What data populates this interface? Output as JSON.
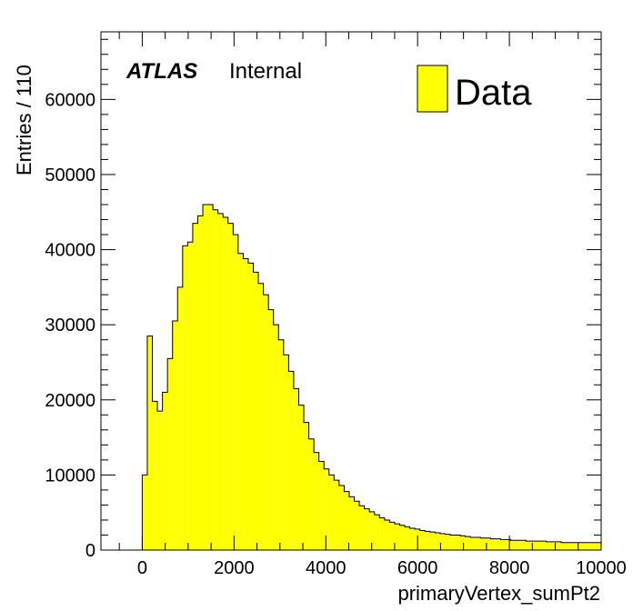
{
  "chart_data": {
    "type": "bar",
    "histogram": true,
    "xlabel": "primaryVertex_sumPt2",
    "ylabel": "Entries / 110",
    "xlim": [
      -900,
      10000
    ],
    "ylim": [
      0,
      69000
    ],
    "bin_width": 110,
    "first_bin_low_edge": 0,
    "xticks": [
      0,
      2000,
      4000,
      6000,
      8000,
      10000
    ],
    "yticks": [
      0,
      10000,
      20000,
      30000,
      40000,
      50000,
      60000
    ],
    "xtick_labels": [
      "0",
      "2000",
      "4000",
      "6000",
      "8000",
      "10000"
    ],
    "ytick_labels": [
      "0",
      "10000",
      "20000",
      "30000",
      "40000",
      "50000",
      "60000"
    ],
    "values": [
      10000,
      28500,
      19800,
      18500,
      21000,
      25500,
      30500,
      35000,
      40500,
      41000,
      43500,
      44500,
      46000,
      46000,
      45300,
      44800,
      44300,
      43500,
      42000,
      39500,
      38800,
      38200,
      37000,
      35500,
      34000,
      32000,
      30000,
      28000,
      26000,
      23800,
      21500,
      19300,
      17000,
      14800,
      13000,
      11800,
      10800,
      10000,
      9300,
      8600,
      7800,
      7100,
      6500,
      5900,
      5500,
      5100,
      4700,
      4300,
      4000,
      3700,
      3500,
      3300,
      3100,
      2900,
      2800,
      2600,
      2500,
      2400,
      2300,
      2200,
      2100,
      2000,
      2000,
      1900,
      1800,
      1700,
      1700,
      1600,
      1600,
      1500,
      1500,
      1400,
      1400,
      1300,
      1300,
      1300,
      1200,
      1200,
      1200,
      1200,
      1100,
      1100,
      1100,
      1000,
      1000,
      1000,
      1000,
      1000,
      1000,
      1000,
      1000
    ],
    "legend": {
      "entries": [
        "Data"
      ],
      "placement": "top-right"
    },
    "colors": {
      "fill": "#ffff00",
      "line": "#000000"
    },
    "grid": false
  },
  "labels": {
    "experiment": "ATLAS",
    "status": "Internal"
  }
}
